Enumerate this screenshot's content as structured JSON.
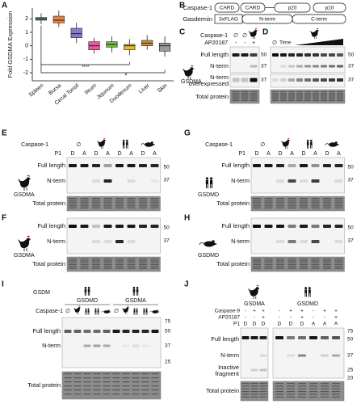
{
  "chart_data": {
    "type": "box",
    "y_label": "Fold GSDMA Expression",
    "categories": [
      "Spleen",
      "Bursa",
      "Cecal Tonsil",
      "Ileum",
      "Jejunum",
      "Duodenum",
      "Liver",
      "Skin"
    ],
    "min": [
      1.6,
      1.4,
      0.2,
      -0.6,
      -0.5,
      -0.7,
      -0.3,
      -0.8
    ],
    "q1": [
      1.9,
      1.7,
      0.6,
      -0.3,
      -0.1,
      -0.3,
      0.0,
      -0.4
    ],
    "median": [
      2.0,
      1.9,
      0.9,
      0.0,
      0.1,
      0.0,
      0.2,
      0.0
    ],
    "q3": [
      2.1,
      2.2,
      1.3,
      0.3,
      0.3,
      0.1,
      0.4,
      0.2
    ],
    "max": [
      2.4,
      2.6,
      1.7,
      0.6,
      0.7,
      0.5,
      0.8,
      0.7
    ],
    "colors": [
      "#3f9e6e",
      "#e8823a",
      "#8a7ac8",
      "#e05aa0",
      "#7ab648",
      "#e8b830",
      "#c8904a",
      "#9a9a9a"
    ],
    "ylim": [
      -2.6,
      2.8
    ],
    "yticks": [
      -2,
      -1,
      0,
      1,
      2
    ],
    "annotations": [
      "****",
      "*"
    ]
  },
  "panel_labels": [
    "A",
    "B",
    "C",
    "D",
    "E",
    "F",
    "G",
    "H",
    "I",
    "J"
  ],
  "B": {
    "caspase": "Caspase-1",
    "caspase_domains": [
      "CARD",
      "CARD",
      "p20",
      "p10"
    ],
    "gasdermin": "Gasdermin",
    "gasdermin_domains": [
      "3xFLAG",
      "N-term",
      "C-term"
    ]
  },
  "C": {
    "caspase": "Caspase-1",
    "caspase_lanes": [
      "∅",
      "∅"
    ],
    "ap": "AP20187",
    "ap_lanes": [
      "-",
      "-",
      "+"
    ],
    "rows": [
      "Full length",
      "N-term",
      [
        "N-term",
        "overexpressed"
      ],
      "Total protein"
    ],
    "protein": "GSDMA",
    "markers": [
      50,
      37,
      37
    ]
  },
  "D": {
    "zero": "∅",
    "time": "Time",
    "markers": [
      50,
      37,
      37
    ]
  },
  "E": {
    "caspase": "Caspase-1",
    "zero": "∅",
    "p1": "P1",
    "lanes": [
      "D",
      "A",
      "D",
      "A",
      "D",
      "A",
      "D",
      "A"
    ],
    "rows": [
      "Full length",
      "N-term",
      "Total protein"
    ],
    "protein": "GSDMA",
    "markers": [
      50,
      37
    ]
  },
  "F": {
    "rows": [
      "Full length",
      "N-term",
      "Total protein"
    ],
    "protein": "GSDMA",
    "markers": [
      50,
      37
    ]
  },
  "G": {
    "caspase": "Caspase-1",
    "zero": "∅",
    "p1": "P1",
    "lanes": [
      "D",
      "A",
      "D",
      "A",
      "D",
      "A",
      "D",
      "A"
    ],
    "rows": [
      "Full length",
      "N-term",
      "Total protein"
    ],
    "protein": "GSDMD",
    "markers": [
      50,
      37
    ]
  },
  "H": {
    "rows": [
      "Full length",
      "N-term",
      "Total protein"
    ],
    "protein": "GSDMD",
    "markers": [
      50,
      37
    ]
  },
  "I": {
    "gsdm": "GSDM",
    "groups": [
      "GSDMD",
      "GSDMA"
    ],
    "caspase": "Caspase-1",
    "zero": "∅",
    "rows": [
      "Full length",
      "N-term",
      "Total protein"
    ],
    "markers": [
      75,
      50,
      37,
      25
    ]
  },
  "J": {
    "groups": [
      "GSDMA",
      "GSDMD"
    ],
    "cas9": "Caspase-9",
    "ap": "AP20187",
    "p1": "P1",
    "left_cas9": [
      "-",
      "+",
      "+"
    ],
    "left_ap": [
      "-",
      "-",
      "+"
    ],
    "left_p1": [
      "D",
      "D",
      "D"
    ],
    "right_cas9": [
      "-",
      "+",
      "+",
      "-",
      "+",
      "+"
    ],
    "right_ap": [
      "-",
      "-",
      "+",
      "-",
      "-",
      "+"
    ],
    "right_p1": [
      "D",
      "D",
      "D",
      "A",
      "A",
      "A"
    ],
    "rows": [
      "Full length",
      "N-term",
      [
        "Inactive",
        "fragment"
      ],
      "Total protein"
    ],
    "markers": [
      75,
      50,
      37,
      25,
      20
    ]
  }
}
